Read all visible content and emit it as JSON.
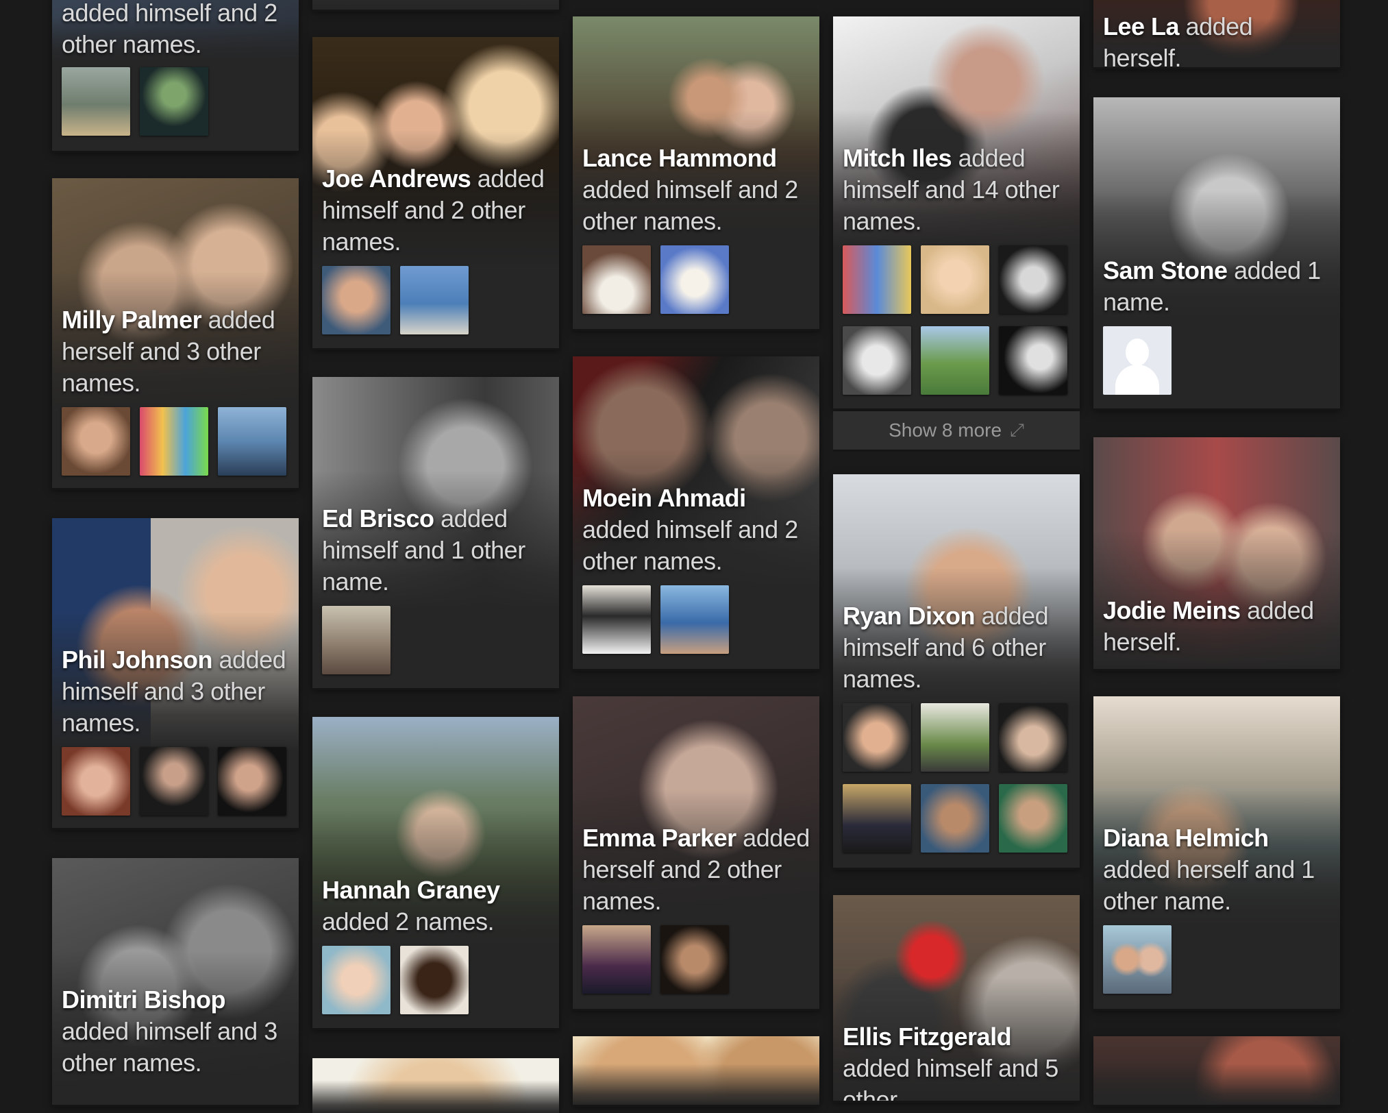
{
  "more_bar": {
    "label": "Show 8 more"
  },
  "cards": [
    {
      "name": "",
      "text": "added himself and 2 other names."
    },
    {
      "name": "Milly Palmer",
      "text": "added herself and 3 other names."
    },
    {
      "name": "Phil Johnson",
      "text": "added himself and 3 other names."
    },
    {
      "name": "Dimitri Bishop",
      "text": "added himself and 3 other names."
    },
    {
      "name": "Joe Andrews",
      "text": "added himself and 2 other names."
    },
    {
      "name": "Ed Brisco",
      "text": "added himself and 1 other name."
    },
    {
      "name": "Hannah Graney",
      "text": "added 2 names."
    },
    {
      "name": "Lance Hammond",
      "text": "added himself and 2 other names."
    },
    {
      "name": "Moein Ahmadi",
      "text": "added himself and 2 other names."
    },
    {
      "name": "Emma Parker",
      "text": "added herself and 2 other names."
    },
    {
      "name": "Mitch Iles",
      "text": "added himself and 14 other names."
    },
    {
      "name": "Ryan Dixon",
      "text": "added himself and 6 other names."
    },
    {
      "name": "Ellis Fitzgerald",
      "text": "added himself and 5 other"
    },
    {
      "name": "Lee La",
      "text": "added herself."
    },
    {
      "name": "Sam Stone",
      "text": "added 1 name."
    },
    {
      "name": "Jodie Meins",
      "text": "added herself."
    },
    {
      "name": "Diana Helmich",
      "text": "added herself and 1 other name."
    }
  ]
}
